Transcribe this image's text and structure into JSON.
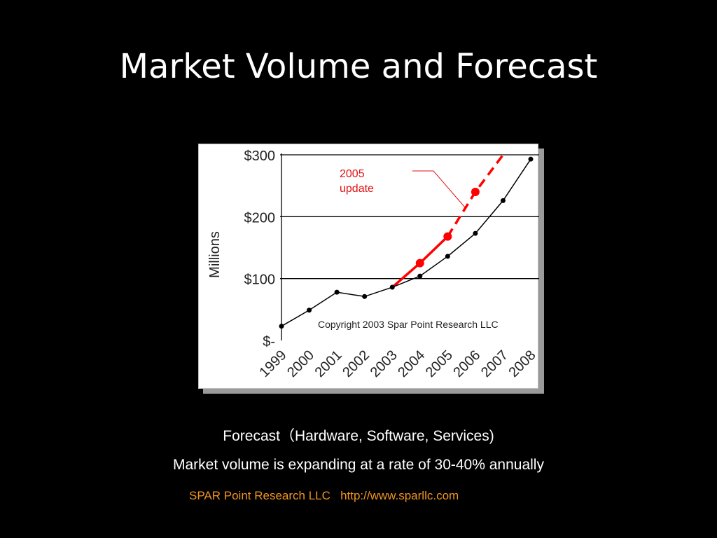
{
  "slide": {
    "title": "Market Volume and Forecast",
    "caption_forecast": "Forecast（Hardware, Software, Services)",
    "caption_growth": "Market volume is expanding at a rate of 30-40% annually",
    "credit_company": "SPAR Point Research LLC",
    "credit_url": "http://www.sparllc.com"
  },
  "chart_data": {
    "type": "line",
    "title": "",
    "xlabel": "",
    "ylabel": "Millions",
    "categories": [
      "1999",
      "2000",
      "2001",
      "2002",
      "2003",
      "2004",
      "2005",
      "2006",
      "2007",
      "2008"
    ],
    "y_tick_labels": [
      "$-",
      "$100",
      "$200",
      "$300"
    ],
    "y_ticks": [
      0,
      100,
      200,
      300
    ],
    "ylim": [
      0,
      300
    ],
    "grid": true,
    "series": [
      {
        "name": "",
        "values": [
          23,
          49,
          78,
          71,
          86,
          104,
          136,
          173,
          226,
          293
        ],
        "color": "#000000"
      },
      {
        "name": "",
        "values": [
          null,
          null,
          null,
          null,
          86,
          125,
          168,
          240,
          300,
          null
        ],
        "solid_through": "2005",
        "color": "#ff0000"
      }
    ],
    "annotations": {
      "update_note": [
        "2005",
        "update"
      ],
      "copyright": "Copyright 2003 Spar Point Research LLC"
    }
  }
}
